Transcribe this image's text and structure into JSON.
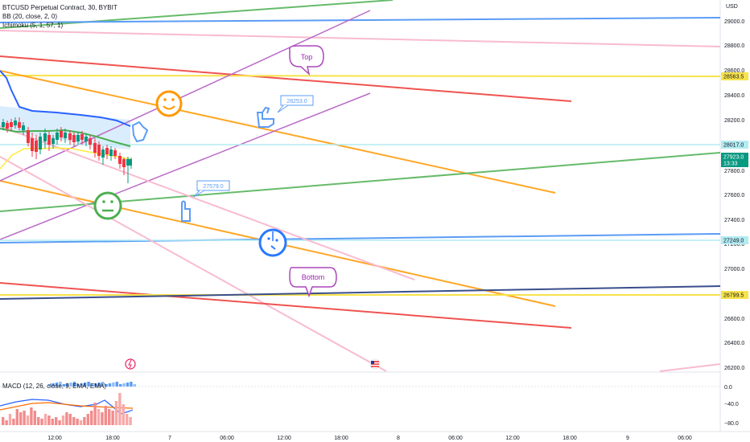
{
  "legend": {
    "symbol": "BTCUSD Perpetual Contract, 30, BYBIT",
    "bb": "BB (20, close, 2, 0)",
    "ichimoku": "Ichimoku (5, 1, 57, 1)"
  },
  "macd_legend": "MACD (12, 26, close, 9, EMA, EMA)",
  "currency": "USD",
  "price_axis": {
    "ticks": [
      "29000.0",
      "28800.0",
      "28600.0",
      "28400.0",
      "28200.0",
      "27800.0",
      "27600.0",
      "27400.0",
      "27200.0",
      "27000.0",
      "26600.0",
      "26400.0",
      "26200.0"
    ],
    "tags": [
      {
        "label": "28563.5",
        "bg": "#f7e34b",
        "fg": "#131722"
      },
      {
        "label": "28017.0",
        "bg": "#b2ebf2",
        "fg": "#131722"
      },
      {
        "label": "27923.0",
        "sub": "13:33",
        "bg": "#089981",
        "fg": "#ffffff"
      },
      {
        "label": "27249.0",
        "bg": "#b2ebf2",
        "fg": "#131722"
      },
      {
        "label": "26799.5",
        "bg": "#f7e34b",
        "fg": "#131722"
      }
    ]
  },
  "macd_axis": {
    "ticks": [
      "0.0",
      "−40.0",
      "−80.0"
    ]
  },
  "time_axis": {
    "ticks": [
      "12:00",
      "18:00",
      "7",
      "06:00",
      "12:00",
      "18:00",
      "8",
      "06:00",
      "12:00",
      "18:00",
      "9",
      "06:00"
    ]
  },
  "annotations": {
    "top": "Top",
    "bottom": "Bottom",
    "price_note_1": "28253.0",
    "price_note_2": "27579.0"
  },
  "colors": {
    "green_line": "#66bb6a",
    "blue_line": "#5b9cf6",
    "pink_line": "#f8bbd0",
    "red_line": "#ef5350",
    "purple_line": "#ba68c8",
    "orange_line": "#ffa726",
    "yellow_line": "#f7e34b",
    "navy_line": "#3a4e8c",
    "up_candle": "#089981",
    "down_candle": "#f23645",
    "callout_purple": "#9c27b0",
    "callout_blue": "#5b9cf6"
  },
  "icons": [
    "smiley-happy-icon",
    "smiley-neutral-icon",
    "smiley-confused-icon",
    "thumbs-up-hand-icon",
    "pointing-hand-icon",
    "flash-icon",
    "us-flag-icon"
  ]
}
